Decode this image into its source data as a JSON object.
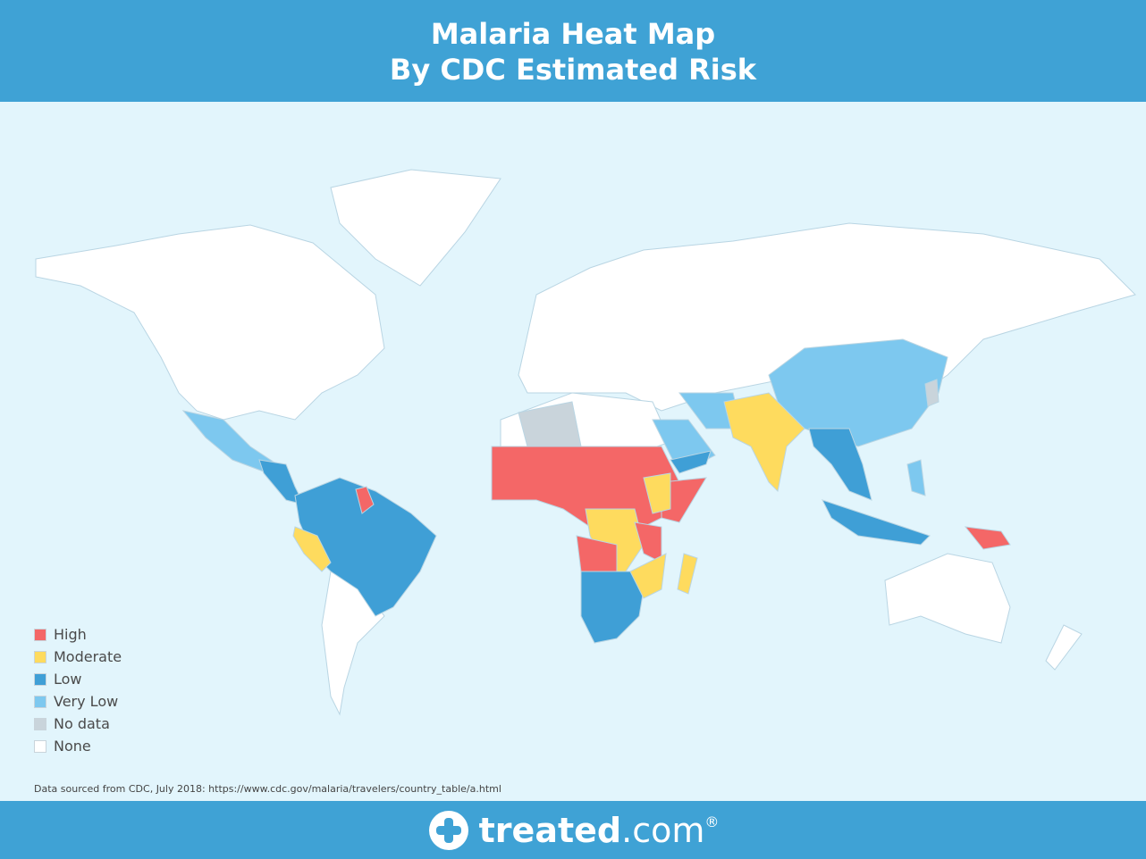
{
  "header": {
    "title": "Malaria Heat Map",
    "subtitle": "By CDC Estimated Risk"
  },
  "legend": [
    {
      "label": "High",
      "color": "#f46767"
    },
    {
      "label": "Moderate",
      "color": "#fedb5e"
    },
    {
      "label": "Low",
      "color": "#3f9fd6"
    },
    {
      "label": "Very Low",
      "color": "#7dc8ef"
    },
    {
      "label": "No data",
      "color": "#c9d4db"
    },
    {
      "label": "None",
      "color": "#ffffff"
    }
  ],
  "source": "Data sourced from CDC, July 2018: https://www.cdc.gov/malaria/travelers/country_table/a.html",
  "footer": {
    "brand": "treated",
    "domain": ".com",
    "mark": "®"
  }
}
